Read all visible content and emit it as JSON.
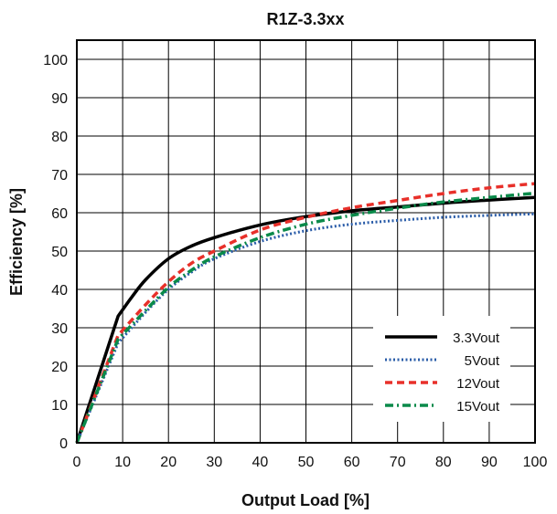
{
  "chart_data": {
    "type": "line",
    "title": "R1Z-3.3xx",
    "xlabel": "Output Load [%]",
    "ylabel": "Efficiency [%]",
    "xlim": [
      0,
      100
    ],
    "ylim": [
      0,
      105
    ],
    "x_ticks": [
      0,
      10,
      20,
      30,
      40,
      50,
      60,
      70,
      80,
      90,
      100
    ],
    "y_ticks": [
      0,
      10,
      20,
      30,
      40,
      50,
      60,
      70,
      80,
      90,
      100
    ],
    "grid": true,
    "legend_position": "bottom-right",
    "series": [
      {
        "name": "3.3Vout",
        "color": "#000000",
        "style": "solid",
        "points": [
          [
            0,
            0
          ],
          [
            9,
            33
          ],
          [
            12,
            38
          ],
          [
            15,
            42.5
          ],
          [
            20,
            48
          ],
          [
            25,
            51.3
          ],
          [
            30,
            53.5
          ],
          [
            40,
            56.8
          ],
          [
            50,
            59
          ],
          [
            60,
            60.5
          ],
          [
            70,
            61.5
          ],
          [
            80,
            62.5
          ],
          [
            90,
            63.3
          ],
          [
            100,
            64
          ]
        ]
      },
      {
        "name": "5Vout",
        "color": "#2a5ca8",
        "style": "dotted",
        "points": [
          [
            0,
            0
          ],
          [
            9,
            26
          ],
          [
            15,
            34
          ],
          [
            20,
            40
          ],
          [
            25,
            44.5
          ],
          [
            30,
            48
          ],
          [
            40,
            52.5
          ],
          [
            50,
            55.3
          ],
          [
            60,
            57
          ],
          [
            70,
            58
          ],
          [
            80,
            58.8
          ],
          [
            90,
            59.3
          ],
          [
            100,
            59.7
          ]
        ]
      },
      {
        "name": "12Vout",
        "color": "#e8302a",
        "style": "dashed",
        "points": [
          [
            0,
            0
          ],
          [
            9,
            28
          ],
          [
            15,
            36
          ],
          [
            20,
            42
          ],
          [
            25,
            46.8
          ],
          [
            30,
            50
          ],
          [
            40,
            55.5
          ],
          [
            50,
            58.8
          ],
          [
            60,
            61.3
          ],
          [
            70,
            63.2
          ],
          [
            80,
            65
          ],
          [
            90,
            66.5
          ],
          [
            100,
            67.6
          ]
        ]
      },
      {
        "name": "15Vout",
        "color": "#0a8a4a",
        "style": "dashdot",
        "points": [
          [
            0,
            0
          ],
          [
            9,
            27
          ],
          [
            15,
            34.5
          ],
          [
            20,
            40.5
          ],
          [
            25,
            45
          ],
          [
            30,
            48.5
          ],
          [
            40,
            53.5
          ],
          [
            50,
            57
          ],
          [
            60,
            59.3
          ],
          [
            70,
            61.2
          ],
          [
            80,
            62.8
          ],
          [
            90,
            64
          ],
          [
            100,
            65.1
          ]
        ]
      }
    ]
  }
}
